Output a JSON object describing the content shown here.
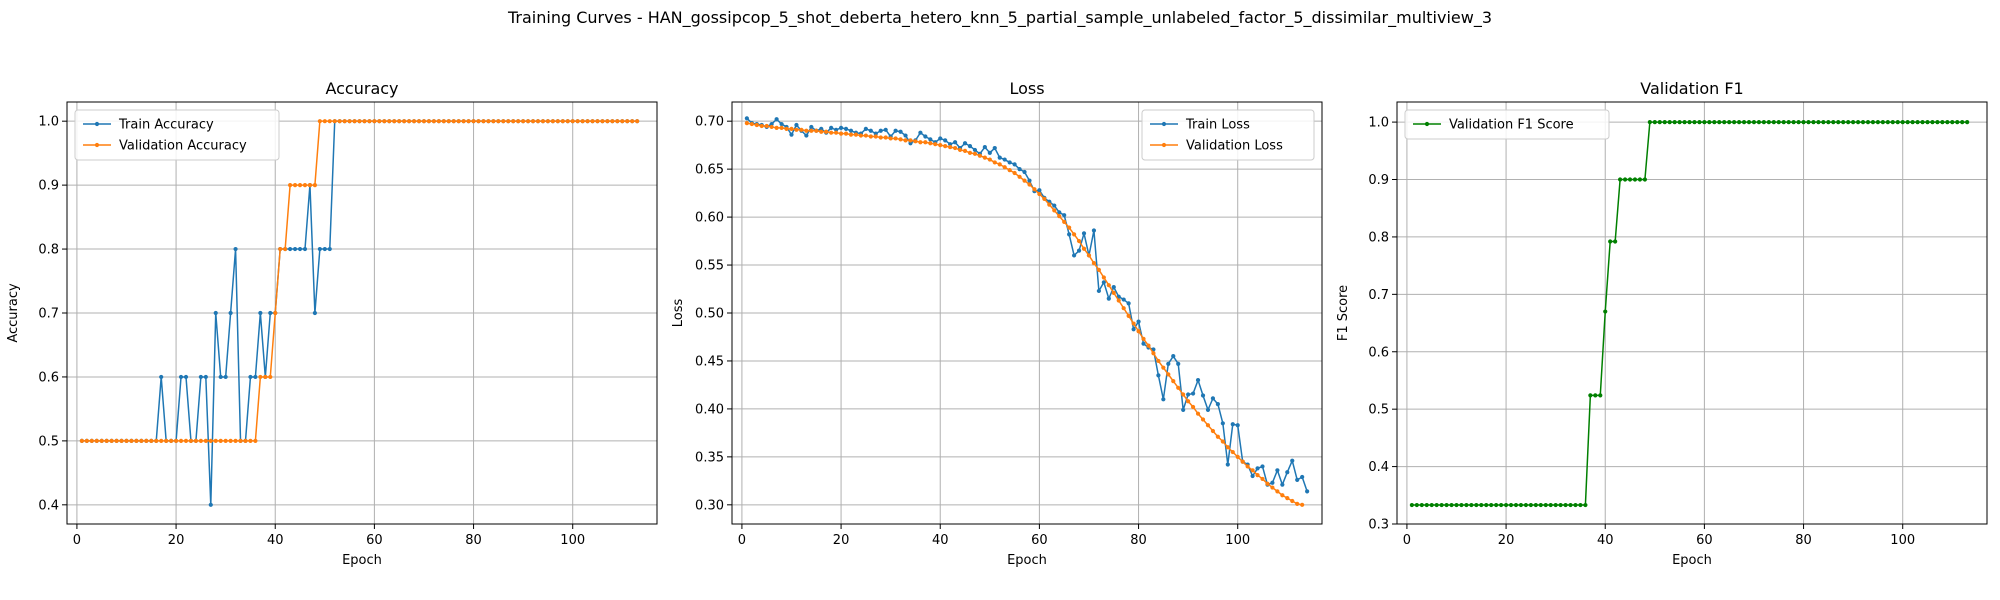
{
  "figure": {
    "suptitle": "Training Curves - HAN_gossipcop_5_shot_deberta_hetero_knn_5_partial_sample_unlabeled_factor_5_dissimilar_multiview_3"
  },
  "colors": {
    "blue": "#1f77b4",
    "orange": "#ff7f0e",
    "green": "#008000",
    "grid": "#b0b0b0"
  },
  "chart_data": [
    {
      "type": "line",
      "title": "Accuracy",
      "xlabel": "Epoch",
      "ylabel": "Accuracy",
      "xlim": [
        -2,
        117
      ],
      "ylim": [
        0.37,
        1.03
      ],
      "xticks": [
        0,
        20,
        40,
        60,
        80,
        100
      ],
      "yticks": [
        0.4,
        0.5,
        0.6,
        0.7,
        0.8,
        0.9,
        1.0
      ],
      "ytick_labels": [
        "0.4",
        "0.5",
        "0.6",
        "0.7",
        "0.8",
        "0.9",
        "1.0"
      ],
      "grid": true,
      "legend_position": "upper-left",
      "series": [
        {
          "name": "Train Accuracy",
          "color": "#1f77b4",
          "x_start": 1,
          "values": [
            0.5,
            0.5,
            0.5,
            0.5,
            0.5,
            0.5,
            0.5,
            0.5,
            0.5,
            0.5,
            0.5,
            0.5,
            0.5,
            0.5,
            0.5,
            0.5,
            0.6,
            0.5,
            0.5,
            0.5,
            0.6,
            0.6,
            0.5,
            0.5,
            0.6,
            0.6,
            0.4,
            0.7,
            0.6,
            0.6,
            0.7,
            0.8,
            0.5,
            0.5,
            0.6,
            0.6,
            0.7,
            0.6,
            0.7,
            0.7,
            0.8,
            0.8,
            0.8,
            0.8,
            0.8,
            0.8,
            0.9,
            0.7,
            0.8,
            0.8,
            0.8,
            1.0,
            1.0,
            1.0,
            1.0,
            1.0,
            1.0,
            1.0,
            1.0,
            1.0,
            1.0,
            1.0,
            1.0,
            1.0,
            1.0,
            1.0,
            1.0,
            1.0,
            1.0,
            1.0,
            1.0,
            1.0,
            1.0,
            1.0,
            1.0,
            1.0,
            1.0,
            1.0,
            1.0,
            1.0,
            1.0,
            1.0,
            1.0,
            1.0,
            1.0,
            1.0,
            1.0,
            1.0,
            1.0,
            1.0,
            1.0,
            1.0,
            1.0,
            1.0,
            1.0,
            1.0,
            1.0,
            1.0,
            1.0,
            1.0,
            1.0,
            1.0,
            1.0,
            1.0,
            1.0,
            1.0,
            1.0,
            1.0,
            1.0,
            1.0,
            1.0,
            1.0,
            1.0
          ]
        },
        {
          "name": "Validation Accuracy",
          "color": "#ff7f0e",
          "x_start": 1,
          "values": [
            0.5,
            0.5,
            0.5,
            0.5,
            0.5,
            0.5,
            0.5,
            0.5,
            0.5,
            0.5,
            0.5,
            0.5,
            0.5,
            0.5,
            0.5,
            0.5,
            0.5,
            0.5,
            0.5,
            0.5,
            0.5,
            0.5,
            0.5,
            0.5,
            0.5,
            0.5,
            0.5,
            0.5,
            0.5,
            0.5,
            0.5,
            0.5,
            0.5,
            0.5,
            0.5,
            0.5,
            0.6,
            0.6,
            0.6,
            0.7,
            0.8,
            0.8,
            0.9,
            0.9,
            0.9,
            0.9,
            0.9,
            0.9,
            1.0,
            1.0,
            1.0,
            1.0,
            1.0,
            1.0,
            1.0,
            1.0,
            1.0,
            1.0,
            1.0,
            1.0,
            1.0,
            1.0,
            1.0,
            1.0,
            1.0,
            1.0,
            1.0,
            1.0,
            1.0,
            1.0,
            1.0,
            1.0,
            1.0,
            1.0,
            1.0,
            1.0,
            1.0,
            1.0,
            1.0,
            1.0,
            1.0,
            1.0,
            1.0,
            1.0,
            1.0,
            1.0,
            1.0,
            1.0,
            1.0,
            1.0,
            1.0,
            1.0,
            1.0,
            1.0,
            1.0,
            1.0,
            1.0,
            1.0,
            1.0,
            1.0,
            1.0,
            1.0,
            1.0,
            1.0,
            1.0,
            1.0,
            1.0,
            1.0,
            1.0,
            1.0,
            1.0,
            1.0,
            1.0
          ]
        }
      ]
    },
    {
      "type": "line",
      "title": "Loss",
      "xlabel": "Epoch",
      "ylabel": "Loss",
      "xlim": [
        -2,
        117
      ],
      "ylim": [
        0.28,
        0.72
      ],
      "xticks": [
        0,
        20,
        40,
        60,
        80,
        100
      ],
      "yticks": [
        0.3,
        0.35,
        0.4,
        0.45,
        0.5,
        0.55,
        0.6,
        0.65,
        0.7
      ],
      "ytick_labels": [
        "0.30",
        "0.35",
        "0.40",
        "0.45",
        "0.50",
        "0.55",
        "0.60",
        "0.65",
        "0.70"
      ],
      "grid": true,
      "legend_position": "upper-right",
      "series": [
        {
          "name": "Train Loss",
          "color": "#1f77b4",
          "x_start": 1,
          "values": [
            0.703,
            0.698,
            0.697,
            0.696,
            0.694,
            0.697,
            0.702,
            0.697,
            0.694,
            0.686,
            0.696,
            0.69,
            0.685,
            0.694,
            0.69,
            0.692,
            0.688,
            0.693,
            0.691,
            0.693,
            0.692,
            0.69,
            0.688,
            0.687,
            0.692,
            0.69,
            0.687,
            0.69,
            0.691,
            0.684,
            0.69,
            0.689,
            0.685,
            0.677,
            0.68,
            0.688,
            0.684,
            0.681,
            0.678,
            0.682,
            0.68,
            0.676,
            0.678,
            0.672,
            0.677,
            0.674,
            0.67,
            0.666,
            0.673,
            0.667,
            0.672,
            0.662,
            0.66,
            0.657,
            0.655,
            0.65,
            0.647,
            0.638,
            0.627,
            0.628,
            0.62,
            0.616,
            0.612,
            0.605,
            0.602,
            0.582,
            0.56,
            0.565,
            0.583,
            0.56,
            0.586,
            0.523,
            0.532,
            0.515,
            0.527,
            0.517,
            0.514,
            0.51,
            0.483,
            0.491,
            0.468,
            0.464,
            0.462,
            0.435,
            0.41,
            0.447,
            0.455,
            0.447,
            0.399,
            0.415,
            0.416,
            0.43,
            0.414,
            0.399,
            0.411,
            0.405,
            0.385,
            0.342,
            0.384,
            0.383,
            0.345,
            0.342,
            0.33,
            0.338,
            0.34,
            0.321,
            0.323,
            0.336,
            0.321,
            0.334,
            0.346,
            0.326,
            0.329,
            0.314
          ]
        },
        {
          "name": "Validation Loss",
          "color": "#ff7f0e",
          "x_start": 1,
          "values": [
            0.698,
            0.697,
            0.696,
            0.695,
            0.695,
            0.694,
            0.693,
            0.693,
            0.692,
            0.692,
            0.691,
            0.691,
            0.69,
            0.69,
            0.69,
            0.689,
            0.689,
            0.688,
            0.688,
            0.687,
            0.687,
            0.686,
            0.686,
            0.685,
            0.685,
            0.684,
            0.684,
            0.683,
            0.683,
            0.682,
            0.682,
            0.681,
            0.68,
            0.68,
            0.679,
            0.678,
            0.678,
            0.677,
            0.676,
            0.675,
            0.674,
            0.673,
            0.672,
            0.67,
            0.669,
            0.667,
            0.666,
            0.664,
            0.662,
            0.66,
            0.657,
            0.655,
            0.652,
            0.649,
            0.646,
            0.642,
            0.638,
            0.634,
            0.629,
            0.624,
            0.619,
            0.613,
            0.607,
            0.601,
            0.595,
            0.589,
            0.582,
            0.575,
            0.567,
            0.56,
            0.552,
            0.545,
            0.537,
            0.529,
            0.521,
            0.513,
            0.505,
            0.497,
            0.489,
            0.481,
            0.473,
            0.466,
            0.458,
            0.45,
            0.443,
            0.436,
            0.429,
            0.422,
            0.415,
            0.408,
            0.402,
            0.395,
            0.389,
            0.383,
            0.377,
            0.371,
            0.366,
            0.36,
            0.355,
            0.35,
            0.345,
            0.34,
            0.336,
            0.331,
            0.327,
            0.322,
            0.318,
            0.314,
            0.31,
            0.307,
            0.304,
            0.301,
            0.3
          ]
        }
      ]
    },
    {
      "type": "line",
      "title": "Validation F1",
      "xlabel": "Epoch",
      "ylabel": "F1 Score",
      "xlim": [
        -2,
        117
      ],
      "ylim": [
        0.3,
        1.035
      ],
      "xticks": [
        0,
        20,
        40,
        60,
        80,
        100
      ],
      "yticks": [
        0.3,
        0.4,
        0.5,
        0.6,
        0.7,
        0.8,
        0.9,
        1.0
      ],
      "ytick_labels": [
        "0.3",
        "0.4",
        "0.5",
        "0.6",
        "0.7",
        "0.8",
        "0.9",
        "1.0"
      ],
      "grid": true,
      "legend_position": "upper-left",
      "series": [
        {
          "name": "Validation F1 Score",
          "color": "#008000",
          "x_start": 1,
          "values": [
            0.333,
            0.333,
            0.333,
            0.333,
            0.333,
            0.333,
            0.333,
            0.333,
            0.333,
            0.333,
            0.333,
            0.333,
            0.333,
            0.333,
            0.333,
            0.333,
            0.333,
            0.333,
            0.333,
            0.333,
            0.333,
            0.333,
            0.333,
            0.333,
            0.333,
            0.333,
            0.333,
            0.333,
            0.333,
            0.333,
            0.333,
            0.333,
            0.333,
            0.333,
            0.333,
            0.333,
            0.524,
            0.524,
            0.524,
            0.67,
            0.792,
            0.792,
            0.9,
            0.9,
            0.9,
            0.9,
            0.9,
            0.9,
            1.0,
            1.0,
            1.0,
            1.0,
            1.0,
            1.0,
            1.0,
            1.0,
            1.0,
            1.0,
            1.0,
            1.0,
            1.0,
            1.0,
            1.0,
            1.0,
            1.0,
            1.0,
            1.0,
            1.0,
            1.0,
            1.0,
            1.0,
            1.0,
            1.0,
            1.0,
            1.0,
            1.0,
            1.0,
            1.0,
            1.0,
            1.0,
            1.0,
            1.0,
            1.0,
            1.0,
            1.0,
            1.0,
            1.0,
            1.0,
            1.0,
            1.0,
            1.0,
            1.0,
            1.0,
            1.0,
            1.0,
            1.0,
            1.0,
            1.0,
            1.0,
            1.0,
            1.0,
            1.0,
            1.0,
            1.0,
            1.0,
            1.0,
            1.0,
            1.0,
            1.0,
            1.0,
            1.0,
            1.0,
            1.0
          ]
        }
      ]
    }
  ]
}
